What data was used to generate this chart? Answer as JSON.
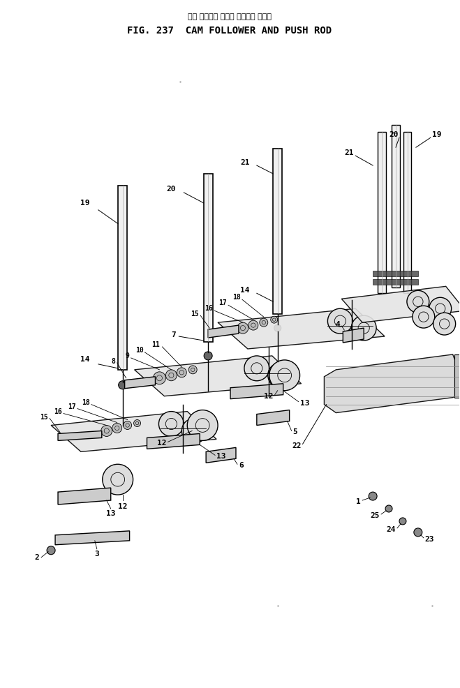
{
  "title_jp": "カム フォロワ および プッシュ ロッド",
  "title_en": "FIG. 237  CAM FOLLOWER AND PUSH ROD",
  "bg_color": "#ffffff",
  "fig_width": 6.59,
  "fig_height": 9.86
}
